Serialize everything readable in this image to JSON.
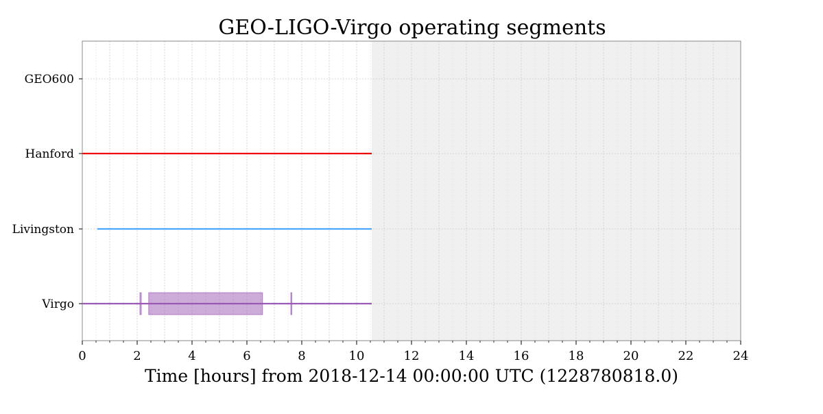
{
  "chart_data": {
    "type": "segments",
    "title": "GEO-LIGO-Virgo operating segments",
    "xlabel": "Time [hours] from 2018-12-14 00:00:00 UTC (1228780818.0)",
    "ylabel": "",
    "xlim": [
      0,
      24
    ],
    "x_ticks": [
      "0",
      "2",
      "4",
      "6",
      "8",
      "10",
      "12",
      "14",
      "16",
      "18",
      "20",
      "22",
      "24"
    ],
    "x_tick_values": [
      0,
      2,
      4,
      6,
      8,
      10,
      12,
      14,
      16,
      18,
      20,
      22,
      24
    ],
    "future_region_start": 10.55,
    "grid": true,
    "legend": "none",
    "series": [
      {
        "name": "GEO600",
        "color": "#000000",
        "segments": []
      },
      {
        "name": "Hanford",
        "color": "#ee0000",
        "segments": [
          [
            0,
            10.55
          ]
        ]
      },
      {
        "name": "Livingston",
        "color": "#4ba6ff",
        "segments": [
          [
            0.55,
            10.55
          ]
        ]
      },
      {
        "name": "Virgo",
        "color": "#9b59b6",
        "segments": [
          [
            0,
            10.55
          ]
        ],
        "thick_segments": [
          [
            2.1,
            2.15
          ],
          [
            2.42,
            6.57
          ],
          [
            7.6,
            7.63
          ]
        ]
      }
    ]
  }
}
